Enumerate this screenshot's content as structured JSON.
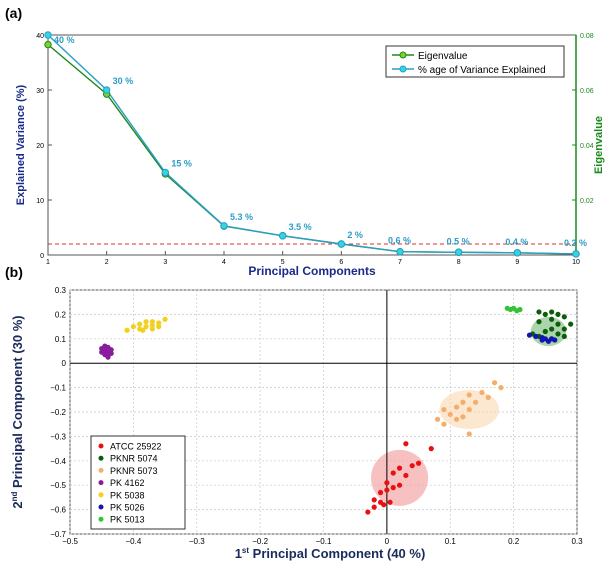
{
  "panel_a": {
    "label": "(a)",
    "y_ticks": [
      "0",
      "10",
      "20",
      "30",
      "40"
    ],
    "right_ticks": [
      "0.02",
      "0.04",
      "0.06",
      "0.08"
    ],
    "x_ticks": [
      "1",
      "2",
      "3",
      "4",
      "5",
      "6",
      "7",
      "8",
      "9",
      "10"
    ]
  },
  "panel_b": {
    "label": "(b)",
    "x_ticks": [
      "−0.5",
      "−0.4",
      "−0.3",
      "−0.2",
      "−0.1",
      "0",
      "0.1",
      "0.2",
      "0.3"
    ],
    "y_ticks": [
      "−0.7",
      "−0.6",
      "−0.5",
      "−0.4",
      "−0.3",
      "−0.2",
      "−0.1",
      "0",
      "0.1",
      "0.2",
      "0.3"
    ],
    "xlabel": "1st Principal Component (40 %)",
    "ylabel": "2nd Principal Component (30 %)"
  },
  "chart_data": [
    {
      "type": "line",
      "title": "",
      "xlabel": "Principal Components",
      "ylabel": "Explained Variance (%)",
      "y2label": "Eigenvalue",
      "x": [
        1,
        2,
        3,
        4,
        5,
        6,
        7,
        8,
        9,
        10
      ],
      "xlim": [
        1,
        10
      ],
      "ylim": [
        0,
        40
      ],
      "y2lim": [
        0,
        0.08
      ],
      "series": [
        {
          "name": "Eigenvalue",
          "axis": "right",
          "color": "#1c8a1c",
          "marker_fill": "#7ecf2f",
          "values": [
            0.0765,
            0.0585,
            0.0295,
            0.0105,
            0.007,
            0.004,
            0.0012,
            0.001,
            0.0008,
            0.0004
          ]
        },
        {
          "name": "% age of Variance Explained",
          "axis": "left",
          "color": "#2a9ec8",
          "marker_fill": "#33d6e0",
          "values": [
            40,
            30,
            15,
            5.3,
            3.5,
            2,
            0.6,
            0.5,
            0.4,
            0.2
          ]
        }
      ],
      "data_labels": [
        "40 %",
        "30 %",
        "15 %",
        "5.3 %",
        "3.5 %",
        "2 %",
        "0.6 %",
        "0.5 %",
        "0.4 %",
        "0.2 %"
      ],
      "reference_line": {
        "y": 2,
        "color": "#e03030",
        "style": "dashed"
      },
      "grid": false,
      "legend": "top-right"
    },
    {
      "type": "scatter",
      "title": "",
      "xlabel": "1st Principal Component (40 %)",
      "ylabel": "2nd Principal Component (30 %)",
      "xlim": [
        -0.5,
        0.3
      ],
      "ylim": [
        -0.7,
        0.3
      ],
      "grid": true,
      "legend": "bottom-left",
      "series": [
        {
          "name": "ATCC 25922",
          "color": "#e81010",
          "ellipse": {
            "cx": 0.02,
            "cy": -0.47,
            "rx": 0.045,
            "ry": 0.115,
            "fill": "#f4a0a0"
          },
          "points": [
            [
              0.03,
              -0.33
            ],
            [
              0.07,
              -0.35
            ],
            [
              0.05,
              -0.41
            ],
            [
              0.04,
              -0.42
            ],
            [
              0.02,
              -0.43
            ],
            [
              0.03,
              -0.46
            ],
            [
              0.01,
              -0.45
            ],
            [
              0.0,
              -0.49
            ],
            [
              0.01,
              -0.51
            ],
            [
              0.0,
              -0.52
            ],
            [
              -0.01,
              -0.53
            ],
            [
              0.02,
              -0.5
            ],
            [
              -0.02,
              -0.56
            ],
            [
              -0.01,
              -0.57
            ],
            [
              -0.005,
              -0.58
            ],
            [
              0.005,
              -0.57
            ],
            [
              -0.02,
              -0.59
            ],
            [
              -0.03,
              -0.61
            ]
          ]
        },
        {
          "name": "PKNR 5074",
          "color": "#0b5e0b",
          "ellipse": {
            "cx": 0.255,
            "cy": 0.13,
            "rx": 0.028,
            "ry": 0.06,
            "fill": "#7fbf7f"
          },
          "points": [
            [
              0.24,
              0.21
            ],
            [
              0.25,
              0.2
            ],
            [
              0.26,
              0.21
            ],
            [
              0.27,
              0.2
            ],
            [
              0.28,
              0.19
            ],
            [
              0.26,
              0.18
            ],
            [
              0.24,
              0.17
            ],
            [
              0.27,
              0.16
            ],
            [
              0.29,
              0.16
            ],
            [
              0.28,
              0.14
            ],
            [
              0.26,
              0.14
            ],
            [
              0.25,
              0.13
            ],
            [
              0.27,
              0.12
            ],
            [
              0.23,
              0.12
            ],
            [
              0.24,
              0.11
            ],
            [
              0.26,
              0.1
            ],
            [
              0.28,
              0.11
            ]
          ]
        },
        {
          "name": "PKNR 5073",
          "color": "#f5ad6a",
          "ellipse": {
            "cx": 0.13,
            "cy": -0.19,
            "rx": 0.047,
            "ry": 0.08,
            "fill": "#fbdcb8"
          },
          "points": [
            [
              0.17,
              -0.08
            ],
            [
              0.18,
              -0.1
            ],
            [
              0.15,
              -0.12
            ],
            [
              0.16,
              -0.14
            ],
            [
              0.13,
              -0.13
            ],
            [
              0.12,
              -0.16
            ],
            [
              0.14,
              -0.16
            ],
            [
              0.11,
              -0.18
            ],
            [
              0.09,
              -0.19
            ],
            [
              0.13,
              -0.19
            ],
            [
              0.1,
              -0.21
            ],
            [
              0.12,
              -0.22
            ],
            [
              0.08,
              -0.23
            ],
            [
              0.11,
              -0.23
            ],
            [
              0.09,
              -0.25
            ],
            [
              0.13,
              -0.29
            ]
          ]
        },
        {
          "name": "PK 4162",
          "color": "#8a1b9c",
          "points": [
            [
              -0.445,
              0.07
            ],
            [
              -0.44,
              0.065
            ],
            [
              -0.45,
              0.06
            ],
            [
              -0.435,
              0.055
            ],
            [
              -0.445,
              0.05
            ],
            [
              -0.44,
              0.045
            ],
            [
              -0.45,
              0.045
            ],
            [
              -0.435,
              0.04
            ],
            [
              -0.445,
              0.035
            ],
            [
              -0.44,
              0.03
            ],
            [
              -0.44,
              0.025
            ]
          ]
        },
        {
          "name": "PK 5038",
          "color": "#f0d020",
          "points": [
            [
              -0.35,
              0.18
            ],
            [
              -0.37,
              0.17
            ],
            [
              -0.38,
              0.17
            ],
            [
              -0.36,
              0.165
            ],
            [
              -0.39,
              0.16
            ],
            [
              -0.37,
              0.155
            ],
            [
              -0.36,
              0.15
            ],
            [
              -0.38,
              0.15
            ],
            [
              -0.4,
              0.15
            ],
            [
              -0.39,
              0.14
            ],
            [
              -0.37,
              0.14
            ],
            [
              -0.41,
              0.135
            ],
            [
              -0.385,
              0.135
            ]
          ]
        },
        {
          "name": "PK 5026",
          "color": "#1515b0",
          "points": [
            [
              0.225,
              0.115
            ],
            [
              0.235,
              0.11
            ],
            [
              0.245,
              0.105
            ],
            [
              0.25,
              0.1
            ],
            [
              0.26,
              0.1
            ],
            [
              0.265,
              0.095
            ],
            [
              0.255,
              0.09
            ],
            [
              0.245,
              0.095
            ]
          ]
        },
        {
          "name": "PK 5013",
          "color": "#33c433",
          "points": [
            [
              0.19,
              0.225
            ],
            [
              0.2,
              0.225
            ],
            [
              0.21,
              0.22
            ],
            [
              0.205,
              0.215
            ],
            [
              0.195,
              0.22
            ]
          ]
        }
      ]
    }
  ]
}
